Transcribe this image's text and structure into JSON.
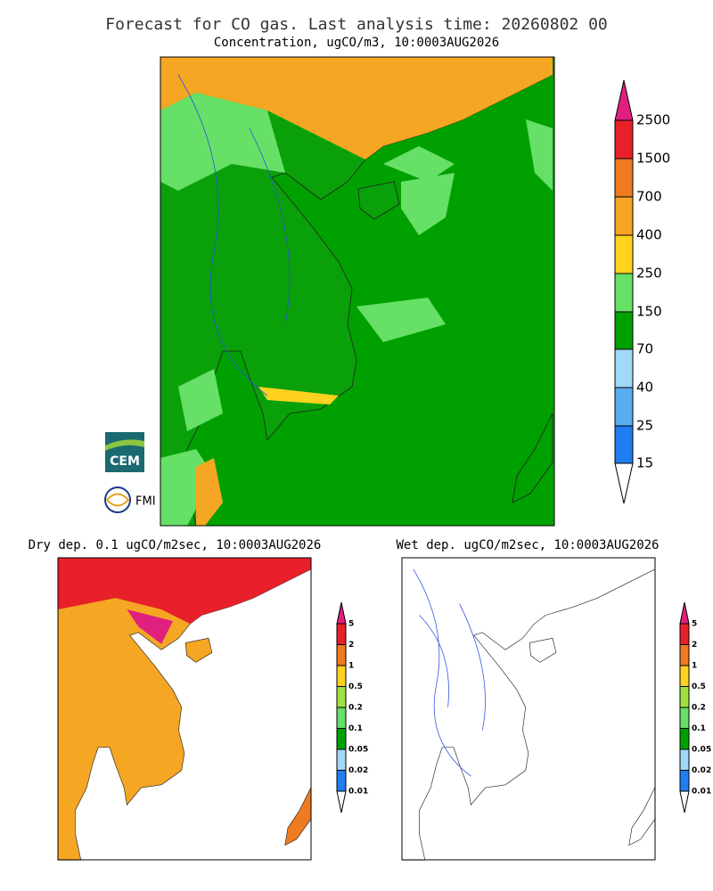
{
  "header": {
    "title": "Forecast for CO gas. Last analysis time: 20260802 00",
    "subtitle": "Concentration, ugCO/m3, 10:0003AUG2026"
  },
  "main_legend": {
    "labels": [
      "2500",
      "1500",
      "700",
      "400",
      "250",
      "150",
      "70",
      "40",
      "25",
      "15"
    ]
  },
  "logos": {
    "cem": "CEM",
    "fmi": "FMI"
  },
  "dry_panel": {
    "title": "Dry dep. 0.1 ugCO/m2sec, 10:0003AUG2026",
    "labels": [
      "5",
      "2",
      "1",
      "0.5",
      "0.2",
      "0.1",
      "0.05",
      "0.02",
      "0.01"
    ]
  },
  "wet_panel": {
    "title": "Wet dep. ugCO/m2sec, 10:0003AUG2026",
    "labels": [
      "5",
      "2",
      "1",
      "0.5",
      "0.2",
      "0.1",
      "0.05",
      "0.02",
      "0.01"
    ]
  }
}
